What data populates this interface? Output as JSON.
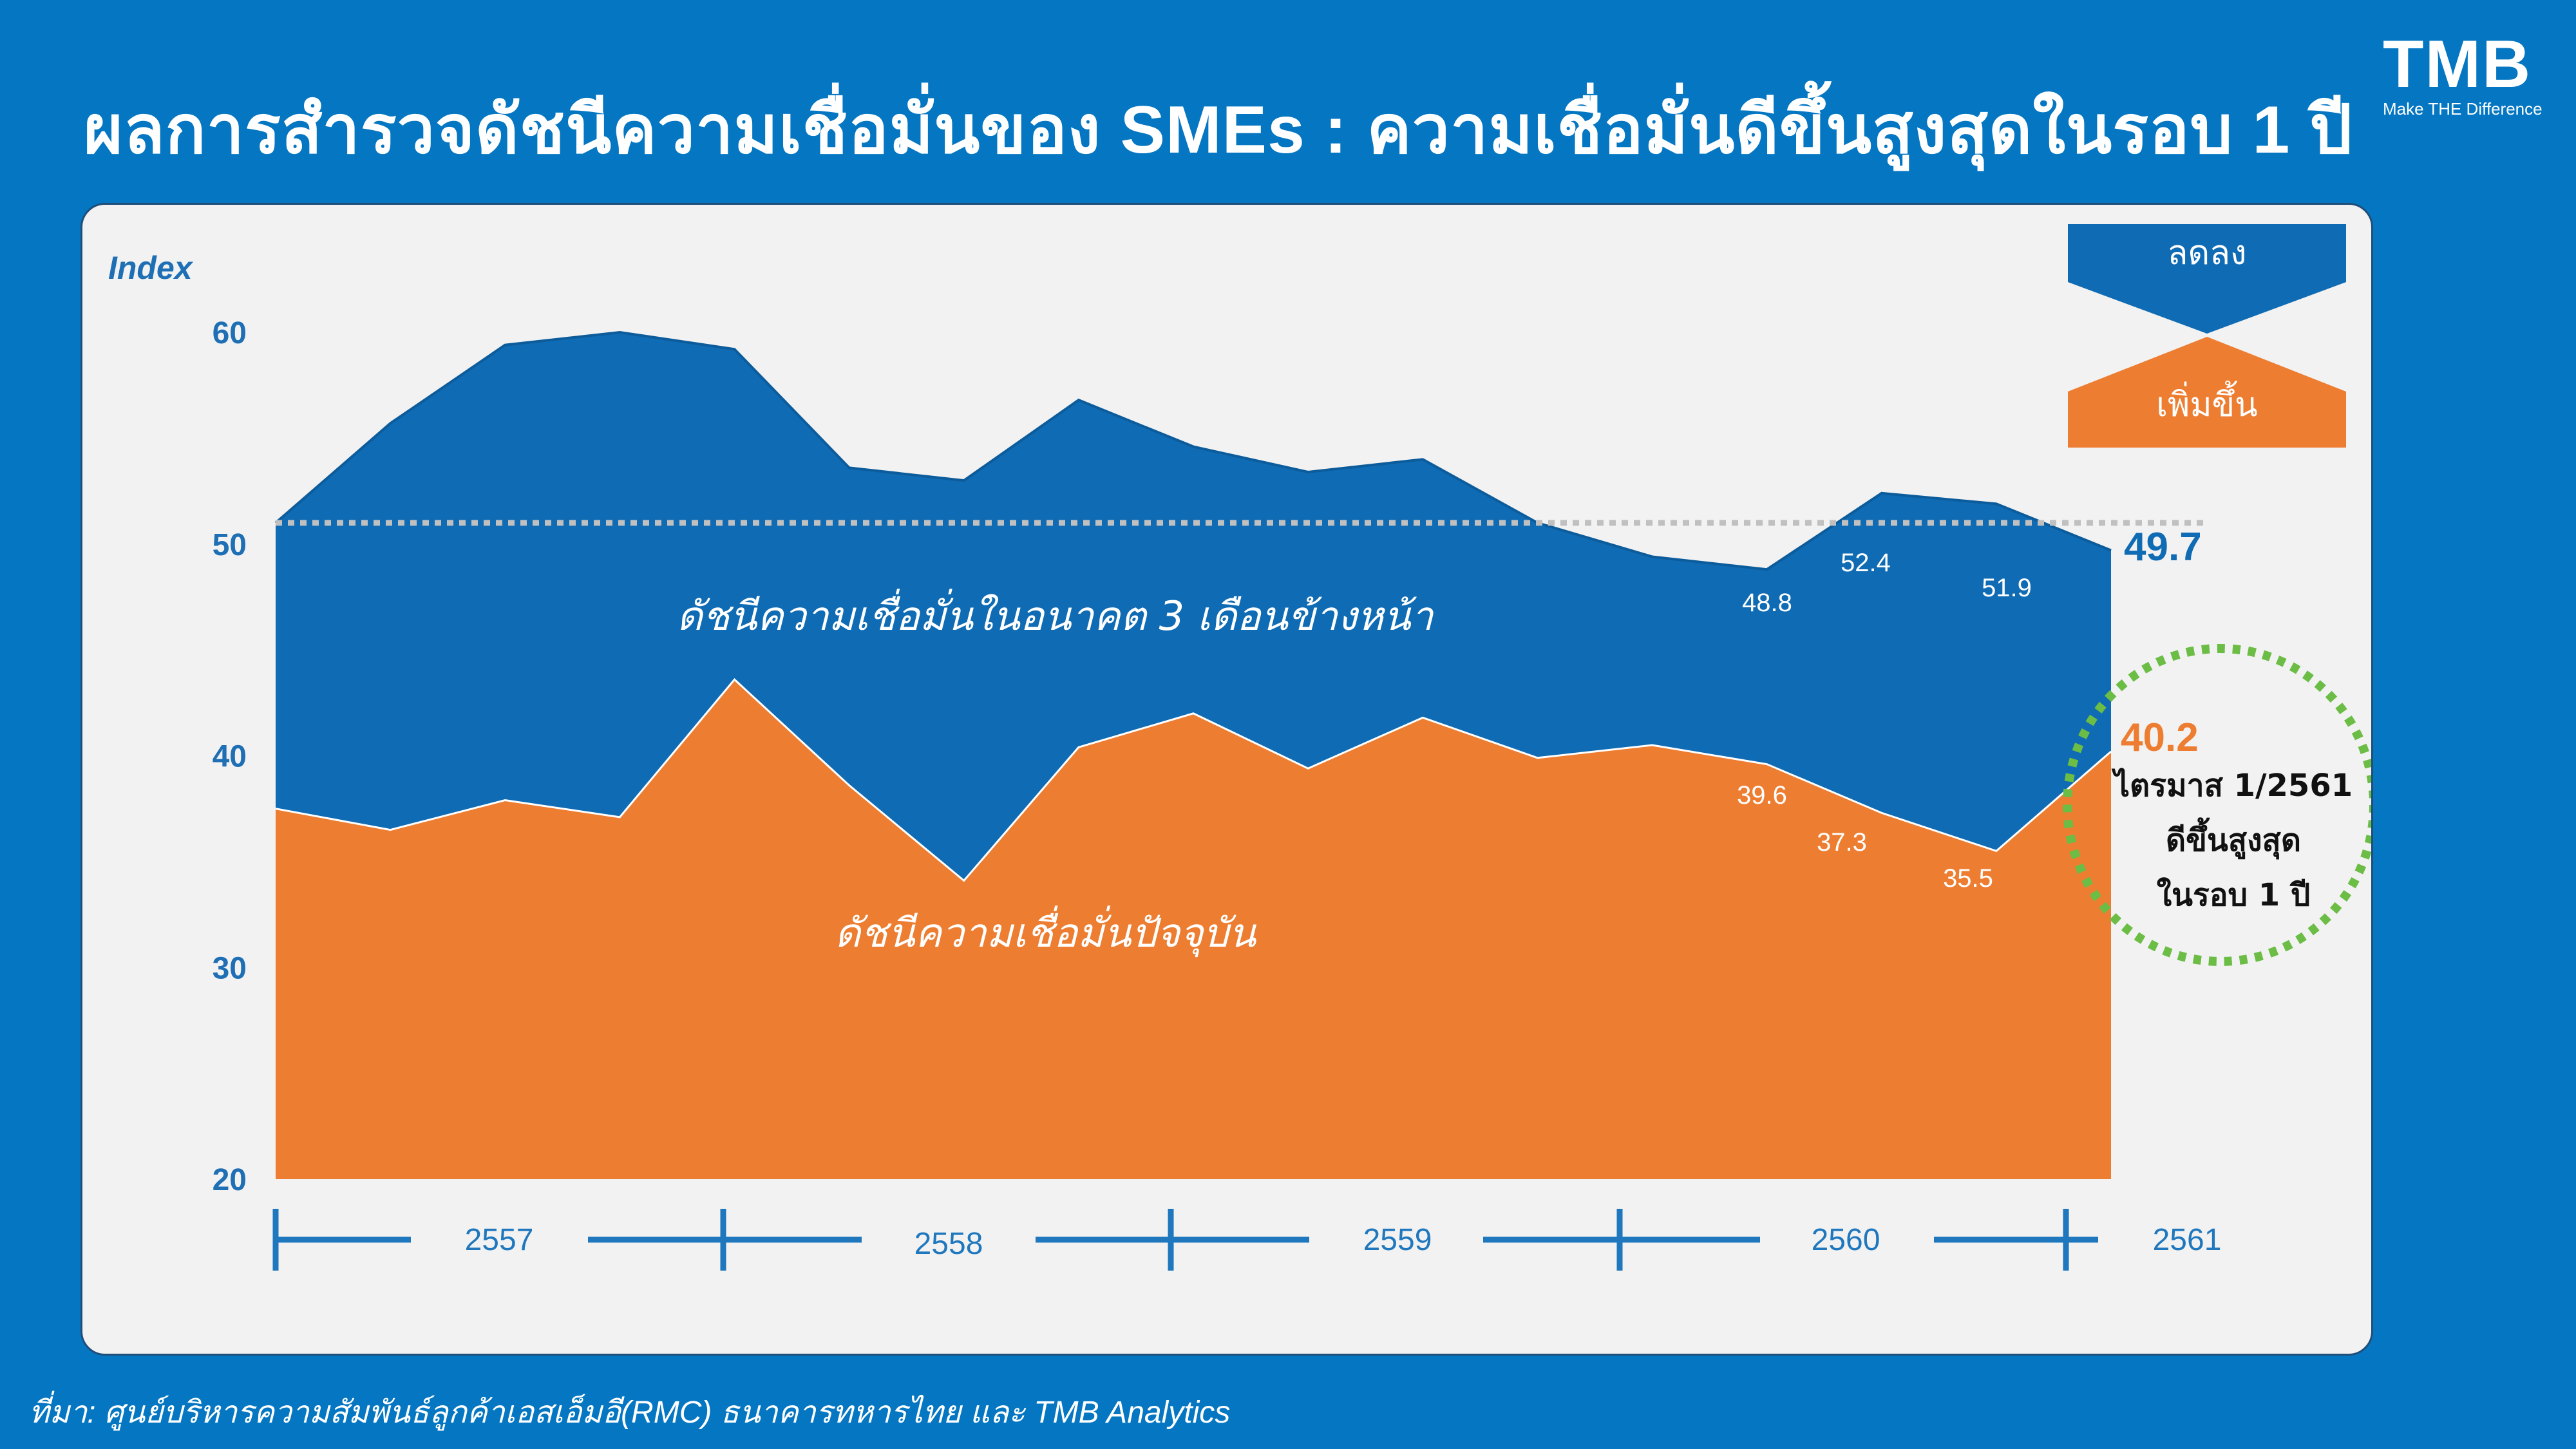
{
  "header": {
    "title": "ผลการสำรวจดัชนีความเชื่อมั่นของ SMEs : ความเชื่อมั่นดีขึ้นสูงสุดในรอบ 1 ปี",
    "logo_text": "TMB",
    "logo_tagline": "Make THE Difference"
  },
  "footer": {
    "source": "ที่มา: ศูนย์บริหารความสัมพันธ์ลูกค้าเอสเอ็มอี(RMC) ธนาคารทหารไทย และ TMB Analytics"
  },
  "colors": {
    "background": "#0476c2",
    "panel": "#f2f2f2",
    "future_series": "#0f6bb3",
    "current_series": "#ed7d31",
    "axis_text": "#1f6fb5",
    "highlight_circle": "#6cbd45",
    "threshold_line": "#c0c0c0"
  },
  "chart_data": {
    "type": "area",
    "ylabel": "Index",
    "ylim": [
      20,
      60
    ],
    "yticks": [
      20,
      30,
      40,
      50,
      60
    ],
    "x": [
      "Q1/2557",
      "Q2/2557",
      "Q3/2557",
      "Q4/2557",
      "Q1/2558",
      "Q2/2558",
      "Q3/2558",
      "Q4/2558",
      "Q1/2559",
      "Q2/2559",
      "Q3/2559",
      "Q4/2559",
      "Q1/2560",
      "Q2/2560",
      "Q3/2560",
      "Q4/2560",
      "Q1/2561"
    ],
    "year_labels": [
      "2557",
      "2558",
      "2559",
      "2560",
      "2561"
    ],
    "series": [
      {
        "name": "ดัชนีความเชื่อมั่นในอนาคต 3 เดือนข้างหน้า",
        "values": [
          51,
          55.7,
          59.4,
          60,
          59.2,
          53.6,
          53,
          56.8,
          54.6,
          53.4,
          54,
          51,
          49.4,
          48.8,
          52.4,
          51.9,
          49.7
        ]
      },
      {
        "name": "ดัชนีความเชื่อมั่นปัจจุบัน",
        "values": [
          37.5,
          36.5,
          37.9,
          37.1,
          43.6,
          38.6,
          34.1,
          40.4,
          42,
          39.4,
          41.8,
          39.9,
          40.5,
          39.6,
          37.3,
          35.5,
          40.2
        ]
      }
    ],
    "reference_line": 51,
    "data_labels": [
      {
        "series": 0,
        "index": 13,
        "text": "48.8"
      },
      {
        "series": 0,
        "index": 14,
        "text": "52.4"
      },
      {
        "series": 0,
        "index": 15,
        "text": "51.9"
      },
      {
        "series": 1,
        "index": 13,
        "text": "39.6"
      },
      {
        "series": 1,
        "index": 14,
        "text": "37.3"
      },
      {
        "series": 1,
        "index": 15,
        "text": "35.5"
      }
    ],
    "end_labels": {
      "future": "49.7",
      "current": "40.2"
    },
    "legend": {
      "decrease": "ลดลง",
      "increase": "เพิ่มขึ้น"
    },
    "highlight_lines": [
      "ไตรมาส 1/2561",
      "ดีขึ้นสูงสุด",
      "ในรอบ 1 ปี"
    ]
  }
}
